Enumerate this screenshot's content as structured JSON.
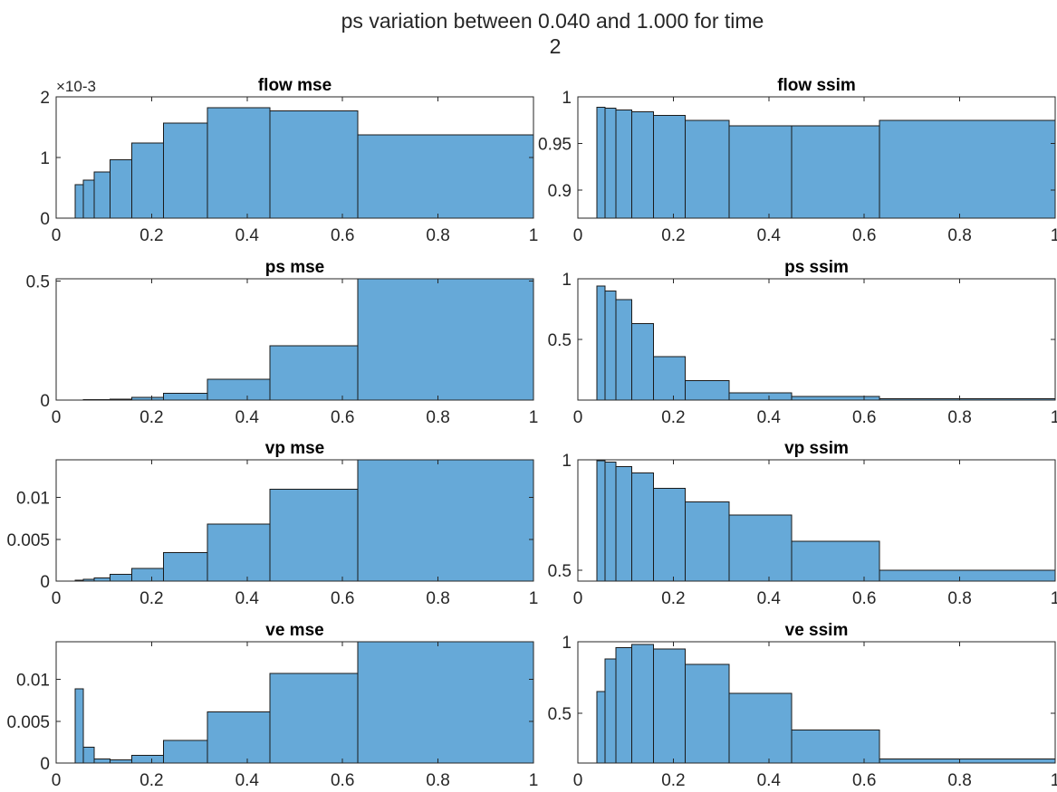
{
  "figure": {
    "title_line1": "ps variation between 0.040 and 1.000 for time",
    "title_line2": "2"
  },
  "colors": {
    "bar_fill": "#66a9d8",
    "bar_edge": "#1a1a1a",
    "axis": "#262626"
  },
  "chart_data": [
    {
      "type": "bar",
      "title": "flow mse",
      "xlim": [
        0,
        1
      ],
      "ylim": [
        0,
        0.002
      ],
      "x_ticks": [
        "0",
        "0.2",
        "0.4",
        "0.6",
        "0.8",
        "1"
      ],
      "y_ticks": [
        "0",
        "1",
        "2"
      ],
      "y_exponent_label": "×10-3",
      "bin_edges": [
        0.04,
        0.0565,
        0.0797,
        0.1126,
        0.1589,
        0.2244,
        0.3169,
        0.4474,
        0.6317,
        1.0
      ],
      "values": [
        0.00055,
        0.00063,
        0.00076,
        0.00096,
        0.00124,
        0.00157,
        0.00182,
        0.00177,
        0.00137
      ]
    },
    {
      "type": "bar",
      "title": "flow ssim",
      "xlim": [
        0,
        1
      ],
      "ylim": [
        0.87,
        1.0
      ],
      "x_ticks": [
        "0",
        "0.2",
        "0.4",
        "0.6",
        "0.8",
        "1"
      ],
      "y_ticks": [
        "0.9",
        "0.95",
        "1"
      ],
      "bin_edges": [
        0.04,
        0.0565,
        0.0797,
        0.1126,
        0.1589,
        0.2244,
        0.3169,
        0.4474,
        0.6317,
        1.0
      ],
      "values": [
        0.989,
        0.988,
        0.986,
        0.984,
        0.98,
        0.975,
        0.969,
        0.969,
        0.975
      ]
    },
    {
      "type": "bar",
      "title": "ps mse",
      "xlim": [
        0,
        1
      ],
      "ylim": [
        0,
        0.51
      ],
      "x_ticks": [
        "0",
        "0.2",
        "0.4",
        "0.6",
        "0.8",
        "1"
      ],
      "y_ticks": [
        "0",
        "0.5"
      ],
      "bin_edges": [
        0.04,
        0.0565,
        0.0797,
        0.1126,
        0.1589,
        0.2244,
        0.3169,
        0.4474,
        0.6317,
        1.0
      ],
      "values": [
        0.0005,
        0.001,
        0.002,
        0.004,
        0.012,
        0.028,
        0.087,
        0.228,
        0.51
      ]
    },
    {
      "type": "bar",
      "title": "ps ssim",
      "xlim": [
        0,
        1
      ],
      "ylim": [
        0,
        1.0
      ],
      "x_ticks": [
        "0",
        "0.2",
        "0.4",
        "0.6",
        "0.8",
        "1"
      ],
      "y_ticks": [
        "0.5",
        "1"
      ],
      "bin_edges": [
        0.04,
        0.0565,
        0.0797,
        0.1126,
        0.1589,
        0.2244,
        0.3169,
        0.4474,
        0.6317,
        1.0
      ],
      "values": [
        0.94,
        0.9,
        0.83,
        0.63,
        0.36,
        0.16,
        0.06,
        0.03,
        0.01
      ]
    },
    {
      "type": "bar",
      "title": "vp mse",
      "xlim": [
        0,
        1
      ],
      "ylim": [
        0,
        0.0145
      ],
      "x_ticks": [
        "0",
        "0.2",
        "0.4",
        "0.6",
        "0.8",
        "1"
      ],
      "y_ticks": [
        "0",
        "0.005",
        "0.01"
      ],
      "bin_edges": [
        0.04,
        0.0565,
        0.0797,
        0.1126,
        0.1589,
        0.2244,
        0.3169,
        0.4474,
        0.6317,
        1.0
      ],
      "values": [
        0.0001,
        0.0002,
        0.0004,
        0.0008,
        0.0015,
        0.0034,
        0.0068,
        0.011,
        0.0145
      ]
    },
    {
      "type": "bar",
      "title": "vp ssim",
      "xlim": [
        0,
        1
      ],
      "ylim": [
        0.45,
        1.0
      ],
      "x_ticks": [
        "0",
        "0.2",
        "0.4",
        "0.6",
        "0.8",
        "1"
      ],
      "y_ticks": [
        "0.5",
        "1"
      ],
      "bin_edges": [
        0.04,
        0.0565,
        0.0797,
        0.1126,
        0.1589,
        0.2244,
        0.3169,
        0.4474,
        0.6317,
        1.0
      ],
      "values": [
        0.995,
        0.99,
        0.97,
        0.94,
        0.87,
        0.81,
        0.75,
        0.63,
        0.5
      ]
    },
    {
      "type": "bar",
      "title": "ve mse",
      "xlim": [
        0,
        1
      ],
      "ylim": [
        0,
        0.0145
      ],
      "x_ticks": [
        "0",
        "0.2",
        "0.4",
        "0.6",
        "0.8",
        "1"
      ],
      "y_ticks": [
        "0",
        "0.005",
        "0.01"
      ],
      "bin_edges": [
        0.04,
        0.0565,
        0.0797,
        0.1126,
        0.1589,
        0.2244,
        0.3169,
        0.4474,
        0.6317,
        1.0
      ],
      "values": [
        0.0089,
        0.0019,
        0.0005,
        0.0004,
        0.0009,
        0.0027,
        0.0061,
        0.0107,
        0.0145
      ]
    },
    {
      "type": "bar",
      "title": "ve ssim",
      "xlim": [
        0,
        1
      ],
      "ylim": [
        0.15,
        1.0
      ],
      "x_ticks": [
        "0",
        "0.2",
        "0.4",
        "0.6",
        "0.8",
        "1"
      ],
      "y_ticks": [
        "0.5",
        "1"
      ],
      "bin_edges": [
        0.04,
        0.0565,
        0.0797,
        0.1126,
        0.1589,
        0.2244,
        0.3169,
        0.4474,
        0.6317,
        1.0
      ],
      "values": [
        0.65,
        0.88,
        0.96,
        0.98,
        0.95,
        0.84,
        0.64,
        0.38,
        0.18
      ]
    }
  ]
}
